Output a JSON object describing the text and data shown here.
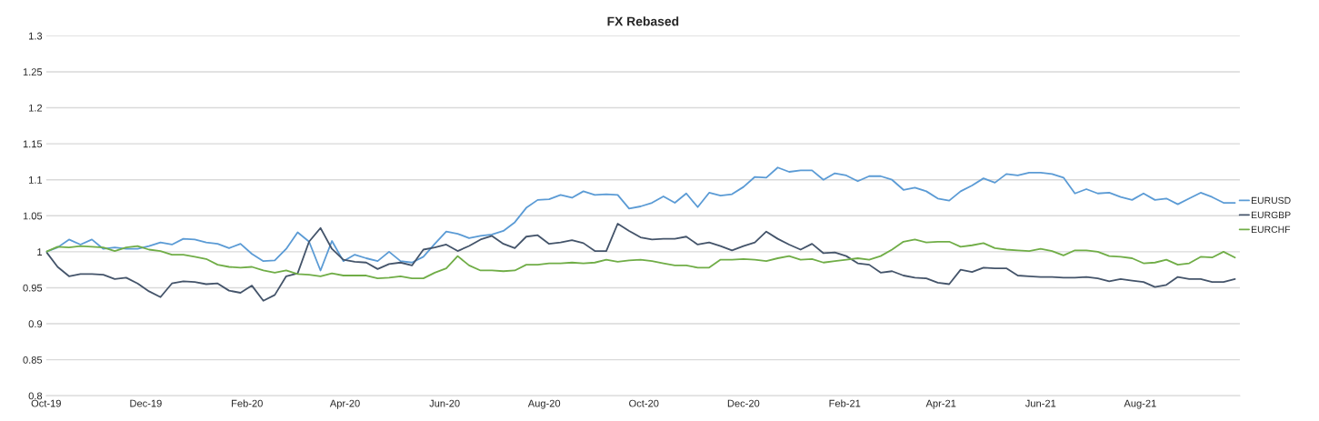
{
  "chart_data": {
    "type": "line",
    "title": "FX Rebased",
    "x": [
      "2019-10-01",
      "2019-10-08",
      "2019-10-15",
      "2019-10-22",
      "2019-10-29",
      "2019-11-05",
      "2019-11-12",
      "2019-11-19",
      "2019-11-26",
      "2019-12-03",
      "2019-12-10",
      "2019-12-17",
      "2019-12-24",
      "2019-12-31",
      "2020-01-07",
      "2020-01-14",
      "2020-01-21",
      "2020-01-28",
      "2020-02-04",
      "2020-02-11",
      "2020-02-18",
      "2020-02-25",
      "2020-03-03",
      "2020-03-10",
      "2020-03-17",
      "2020-03-24",
      "2020-03-31",
      "2020-04-07",
      "2020-04-14",
      "2020-04-21",
      "2020-04-28",
      "2020-05-05",
      "2020-05-12",
      "2020-05-19",
      "2020-05-26",
      "2020-06-02",
      "2020-06-09",
      "2020-06-16",
      "2020-06-23",
      "2020-06-30",
      "2020-07-07",
      "2020-07-14",
      "2020-07-21",
      "2020-07-28",
      "2020-08-04",
      "2020-08-11",
      "2020-08-18",
      "2020-08-25",
      "2020-09-01",
      "2020-09-08",
      "2020-09-15",
      "2020-09-22",
      "2020-09-29",
      "2020-10-06",
      "2020-10-13",
      "2020-10-20",
      "2020-10-27",
      "2020-11-03",
      "2020-11-10",
      "2020-11-17",
      "2020-11-24",
      "2020-12-01",
      "2020-12-08",
      "2020-12-15",
      "2020-12-22",
      "2020-12-29",
      "2021-01-05",
      "2021-01-12",
      "2021-01-19",
      "2021-01-26",
      "2021-02-02",
      "2021-02-09",
      "2021-02-16",
      "2021-02-23",
      "2021-03-02",
      "2021-03-09",
      "2021-03-16",
      "2021-03-23",
      "2021-03-30",
      "2021-04-06",
      "2021-04-13",
      "2021-04-20",
      "2021-04-27",
      "2021-05-04",
      "2021-05-11",
      "2021-05-18",
      "2021-05-25",
      "2021-06-01",
      "2021-06-08",
      "2021-06-15",
      "2021-06-22",
      "2021-06-29",
      "2021-07-06",
      "2021-07-13",
      "2021-07-20",
      "2021-07-27",
      "2021-08-03",
      "2021-08-10",
      "2021-08-17",
      "2021-08-24",
      "2021-08-31",
      "2021-09-07",
      "2021-09-14",
      "2021-09-21",
      "2021-09-28"
    ],
    "series": [
      {
        "name": "EURUSD",
        "color": "#5b9bd5",
        "values": [
          1.0,
          1.006,
          1.017,
          1.01,
          1.017,
          1.004,
          1.006,
          1.004,
          1.004,
          1.008,
          1.013,
          1.01,
          1.018,
          1.017,
          1.013,
          1.011,
          1.005,
          1.011,
          0.997,
          0.987,
          0.988,
          1.004,
          1.027,
          1.014,
          0.974,
          1.015,
          0.987,
          0.996,
          0.991,
          0.987,
          1.0,
          0.987,
          0.985,
          0.993,
          1.011,
          1.028,
          1.025,
          1.019,
          1.022,
          1.024,
          1.029,
          1.041,
          1.061,
          1.072,
          1.073,
          1.079,
          1.075,
          1.084,
          1.079,
          1.08,
          1.079,
          1.06,
          1.063,
          1.068,
          1.077,
          1.068,
          1.081,
          1.062,
          1.082,
          1.078,
          1.08,
          1.09,
          1.104,
          1.103,
          1.117,
          1.111,
          1.113,
          1.113,
          1.1,
          1.109,
          1.106,
          1.098,
          1.105,
          1.105,
          1.1,
          1.086,
          1.089,
          1.084,
          1.074,
          1.071,
          1.084,
          1.092,
          1.102,
          1.096,
          1.108,
          1.106,
          1.11,
          1.11,
          1.108,
          1.103,
          1.081,
          1.087,
          1.081,
          1.082,
          1.076,
          1.072,
          1.081,
          1.072,
          1.074,
          1.066,
          1.074,
          1.082,
          1.076,
          1.068,
          1.068
        ]
      },
      {
        "name": "EURGBP",
        "color": "#44546a",
        "values": [
          1.0,
          0.979,
          0.966,
          0.969,
          0.969,
          0.968,
          0.962,
          0.964,
          0.956,
          0.945,
          0.937,
          0.956,
          0.959,
          0.958,
          0.955,
          0.956,
          0.946,
          0.943,
          0.953,
          0.932,
          0.94,
          0.966,
          0.97,
          1.014,
          1.033,
          1.004,
          0.989,
          0.986,
          0.985,
          0.976,
          0.983,
          0.985,
          0.981,
          1.003,
          1.006,
          1.01,
          1.001,
          1.008,
          1.017,
          1.022,
          1.011,
          1.005,
          1.021,
          1.023,
          1.011,
          1.013,
          1.016,
          1.012,
          1.001,
          1.001,
          1.039,
          1.029,
          1.02,
          1.017,
          1.018,
          1.018,
          1.021,
          1.01,
          1.013,
          1.008,
          1.002,
          1.008,
          1.013,
          1.028,
          1.018,
          1.01,
          1.003,
          1.011,
          0.998,
          0.999,
          0.994,
          0.984,
          0.982,
          0.971,
          0.973,
          0.967,
          0.964,
          0.963,
          0.957,
          0.955,
          0.975,
          0.972,
          0.978,
          0.977,
          0.977,
          0.967,
          0.966,
          0.965,
          0.965,
          0.964,
          0.964,
          0.965,
          0.963,
          0.959,
          0.962,
          0.96,
          0.958,
          0.951,
          0.954,
          0.965,
          0.962,
          0.962,
          0.958,
          0.958,
          0.962
        ]
      },
      {
        "name": "EURCHF",
        "color": "#70ad47",
        "values": [
          1.0,
          1.007,
          1.006,
          1.008,
          1.007,
          1.006,
          1.001,
          1.006,
          1.008,
          1.003,
          1.001,
          0.996,
          0.996,
          0.993,
          0.99,
          0.982,
          0.979,
          0.978,
          0.979,
          0.974,
          0.971,
          0.974,
          0.969,
          0.968,
          0.966,
          0.97,
          0.967,
          0.967,
          0.967,
          0.963,
          0.964,
          0.966,
          0.963,
          0.963,
          0.971,
          0.977,
          0.994,
          0.981,
          0.974,
          0.974,
          0.973,
          0.974,
          0.982,
          0.982,
          0.984,
          0.984,
          0.985,
          0.984,
          0.985,
          0.989,
          0.986,
          0.988,
          0.989,
          0.987,
          0.984,
          0.981,
          0.981,
          0.978,
          0.978,
          0.989,
          0.989,
          0.99,
          0.989,
          0.987,
          0.991,
          0.994,
          0.989,
          0.99,
          0.985,
          0.987,
          0.989,
          0.991,
          0.989,
          0.994,
          1.003,
          1.014,
          1.017,
          1.013,
          1.014,
          1.014,
          1.007,
          1.009,
          1.012,
          1.005,
          1.003,
          1.002,
          1.001,
          1.004,
          1.001,
          0.995,
          1.002,
          1.002,
          1.0,
          0.994,
          0.993,
          0.991,
          0.984,
          0.985,
          0.989,
          0.982,
          0.984,
          0.993,
          0.992,
          1.0,
          0.992
        ]
      }
    ],
    "xlim": [
      "2019-10-01",
      "2021-10-01"
    ],
    "xticks": [
      {
        "value": "2019-10-01",
        "label": "Oct-19"
      },
      {
        "value": "2019-12-01",
        "label": "Dec-19"
      },
      {
        "value": "2020-02-01",
        "label": "Feb-20"
      },
      {
        "value": "2020-04-01",
        "label": "Apr-20"
      },
      {
        "value": "2020-06-01",
        "label": "Jun-20"
      },
      {
        "value": "2020-08-01",
        "label": "Aug-20"
      },
      {
        "value": "2020-10-01",
        "label": "Oct-20"
      },
      {
        "value": "2020-12-01",
        "label": "Dec-20"
      },
      {
        "value": "2021-02-01",
        "label": "Feb-21"
      },
      {
        "value": "2021-04-01",
        "label": "Apr-21"
      },
      {
        "value": "2021-06-01",
        "label": "Jun-21"
      },
      {
        "value": "2021-08-01",
        "label": "Aug-21"
      }
    ],
    "ylim": [
      0.8,
      1.3
    ],
    "yticks": [
      0.8,
      0.85,
      0.9,
      0.95,
      1,
      1.05,
      1.1,
      1.15,
      1.2,
      1.25,
      1.3
    ],
    "grid": "y",
    "legend": "right",
    "marker": "none",
    "line_style": "solid"
  }
}
